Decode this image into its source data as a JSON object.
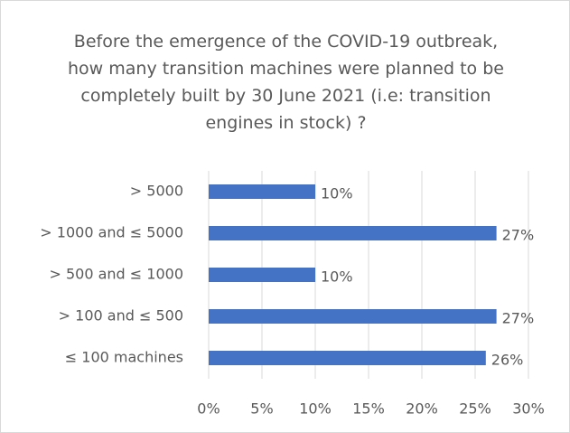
{
  "chart_data": {
    "type": "barh",
    "title": "Before the emergence of the COVID-19 outbreak, how many transition machines were planned to be completely built by 30 June 2021 (i.e: transition engines in stock) ?",
    "categories": [
      "> 5000",
      "> 1000 and ≤ 5000",
      "> 500 and ≤ 1000",
      "> 100 and ≤ 500",
      "≤ 100 machines"
    ],
    "values": [
      10,
      27,
      10,
      27,
      26
    ],
    "value_labels": [
      "10%",
      "27%",
      "10%",
      "27%",
      "26%"
    ],
    "color": "#4472c4",
    "xlim": [
      0,
      30
    ],
    "xticks": [
      {
        "value": 0,
        "label": "0%"
      },
      {
        "value": 5,
        "label": "5%"
      },
      {
        "value": 10,
        "label": "10%"
      },
      {
        "value": 15,
        "label": "15%"
      },
      {
        "value": 20,
        "label": "20%"
      },
      {
        "value": 25,
        "label": "25%"
      },
      {
        "value": 30,
        "label": "30%"
      }
    ],
    "grid": true
  }
}
